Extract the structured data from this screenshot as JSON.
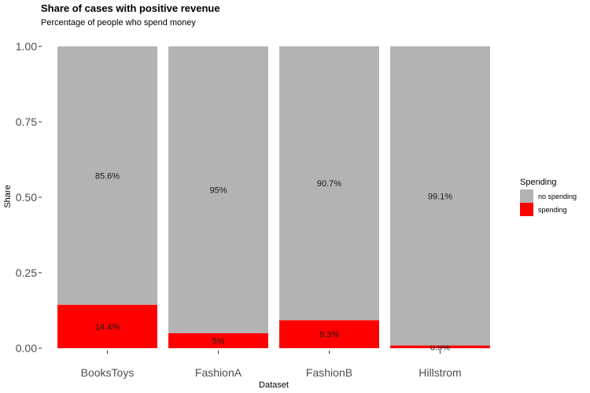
{
  "chart_data": {
    "type": "bar",
    "stacked": true,
    "title": "Share of cases with positive revenue",
    "subtitle": "Percentage of people who spend money",
    "xlabel": "Dataset",
    "ylabel": "Share",
    "ylim": [
      0,
      1
    ],
    "y_ticks": [
      "0.00",
      "0.25",
      "0.50",
      "0.75",
      "1.00"
    ],
    "categories": [
      "BooksToys",
      "FashionA",
      "FashionB",
      "Hillstrom"
    ],
    "series": [
      {
        "name": "spending",
        "color": "#ff0000",
        "values": [
          0.144,
          0.05,
          0.093,
          0.009
        ],
        "labels": [
          "14.4%",
          "5%",
          "9.3%",
          "0.9%"
        ]
      },
      {
        "name": "no spending",
        "color": "#b3b3b3",
        "values": [
          0.856,
          0.95,
          0.907,
          0.991
        ],
        "labels": [
          "85.6%",
          "95%",
          "90.7%",
          "99.1%"
        ]
      }
    ],
    "legend": {
      "title": "Spending",
      "position": "right",
      "items": [
        {
          "label": "no spending",
          "color": "#b3b3b3"
        },
        {
          "label": "spending",
          "color": "#ff0000"
        }
      ]
    },
    "grid": false
  }
}
